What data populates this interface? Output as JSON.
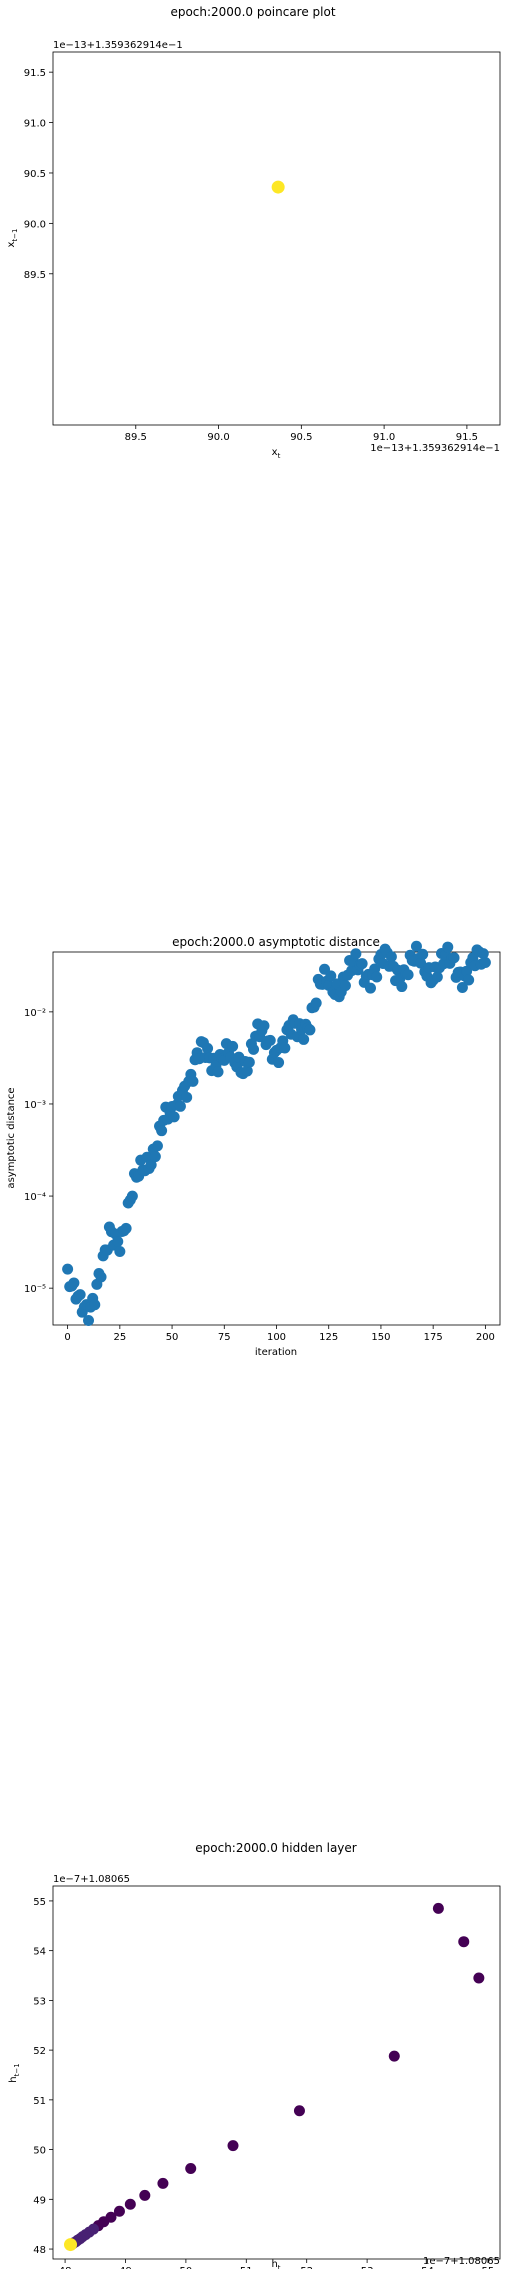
{
  "chart_data": [
    {
      "type": "scatter",
      "title": "epoch:2000.0 poincare plot",
      "xlabel": "x_t",
      "ylabel": "x_{t-1}",
      "x_offset_label": "1e−13+1.359362914e−1",
      "y_offset_label": "1e−13+1.359362914e−1",
      "xlim": [
        89.0,
        91.7
      ],
      "ylim": [
        88.0,
        91.7
      ],
      "xticks": [
        89.5,
        90.0,
        90.5,
        91.0,
        91.5
      ],
      "yticks": [
        89.5,
        90.0,
        90.5,
        91.0,
        91.5
      ],
      "xtick_labels": [
        "89.5",
        "90.0",
        "90.5",
        "91.0",
        "91.5"
      ],
      "ytick_labels": [
        "89.5",
        "90.0",
        "90.5",
        "91.0",
        "91.5"
      ],
      "points": [
        {
          "x": 90.36,
          "y": 90.36
        }
      ],
      "color": "#fde725",
      "grid": false
    },
    {
      "type": "scatter",
      "title": "epoch:2000.0 asymptotic distance",
      "xlabel": "iteration",
      "ylabel": "asymptotic distance",
      "xlim": [
        -7,
        207
      ],
      "ylim_log10": [
        -5.4,
        -1.35
      ],
      "yscale": "log",
      "xticks": [
        0,
        25,
        50,
        75,
        100,
        125,
        150,
        175,
        200
      ],
      "xtick_labels": [
        "0",
        "25",
        "50",
        "75",
        "100",
        "125",
        "150",
        "175",
        "200"
      ],
      "yticks_log10": [
        -5,
        -4,
        -3,
        -2
      ],
      "ytick_labels": [
        "10⁻⁵",
        "10⁻⁴",
        "10⁻³",
        "10⁻²"
      ],
      "color": "#1f77b4",
      "grid": false,
      "anchors_log10": [
        [
          0,
          -4.88
        ],
        [
          3,
          -5.15
        ],
        [
          6,
          -5.22
        ],
        [
          10,
          -5.15
        ],
        [
          14,
          -4.95
        ],
        [
          18,
          -4.75
        ],
        [
          20,
          -4.5
        ],
        [
          25,
          -4.4
        ],
        [
          30,
          -4.05
        ],
        [
          35,
          -3.8
        ],
        [
          40,
          -3.5
        ],
        [
          45,
          -3.25
        ],
        [
          50,
          -3.2
        ],
        [
          55,
          -2.75
        ],
        [
          60,
          -2.7
        ],
        [
          65,
          -2.45
        ],
        [
          70,
          -2.45
        ],
        [
          75,
          -2.5
        ],
        [
          80,
          -2.6
        ],
        [
          85,
          -2.5
        ],
        [
          90,
          -2.3
        ],
        [
          95,
          -2.35
        ],
        [
          100,
          -2.35
        ],
        [
          105,
          -2.3
        ],
        [
          110,
          -2.25
        ],
        [
          115,
          -2.05
        ],
        [
          120,
          -1.8
        ],
        [
          125,
          -1.72
        ],
        [
          130,
          -1.65
        ],
        [
          140,
          -1.55
        ],
        [
          150,
          -1.5
        ],
        [
          160,
          -1.52
        ],
        [
          170,
          -1.5
        ],
        [
          180,
          -1.5
        ],
        [
          190,
          -1.52
        ],
        [
          200,
          -1.5
        ]
      ]
    },
    {
      "type": "scatter",
      "title": "epoch:2000.0 hidden layer",
      "xlabel": "h_t",
      "ylabel": "h_{t-1}",
      "x_offset_label": "1e−7+1.08065",
      "y_offset_label": "1e−7+1.08065",
      "xlim": [
        47.8,
        55.2
      ],
      "ylim": [
        47.8,
        55.3
      ],
      "xticks": [
        48,
        49,
        50,
        51,
        52,
        53,
        54,
        55
      ],
      "yticks": [
        48,
        49,
        50,
        51,
        52,
        53,
        54,
        55
      ],
      "xtick_labels": [
        "48",
        "49",
        "50",
        "51",
        "52",
        "53",
        "54",
        "55"
      ],
      "ytick_labels": [
        "48",
        "49",
        "50",
        "51",
        "52",
        "53",
        "54",
        "55"
      ],
      "colormap": [
        "#440154",
        "#482173",
        "#fde725"
      ],
      "grid": false,
      "points": [
        {
          "x": 54.18,
          "y": 54.85
        },
        {
          "x": 54.6,
          "y": 54.18
        },
        {
          "x": 54.85,
          "y": 53.45
        },
        {
          "x": 53.45,
          "y": 51.88
        },
        {
          "x": 51.88,
          "y": 50.78
        },
        {
          "x": 50.78,
          "y": 50.08
        },
        {
          "x": 50.08,
          "y": 49.62
        },
        {
          "x": 49.62,
          "y": 49.32
        },
        {
          "x": 49.32,
          "y": 49.08
        },
        {
          "x": 49.08,
          "y": 48.9
        },
        {
          "x": 48.9,
          "y": 48.76
        },
        {
          "x": 48.76,
          "y": 48.64
        },
        {
          "x": 48.64,
          "y": 48.55
        },
        {
          "x": 48.55,
          "y": 48.47
        },
        {
          "x": 48.47,
          "y": 48.4
        },
        {
          "x": 48.4,
          "y": 48.34
        },
        {
          "x": 48.34,
          "y": 48.29
        },
        {
          "x": 48.29,
          "y": 48.25
        },
        {
          "x": 48.25,
          "y": 48.21
        },
        {
          "x": 48.21,
          "y": 48.18
        },
        {
          "x": 48.18,
          "y": 48.15
        },
        {
          "x": 48.15,
          "y": 48.13
        },
        {
          "x": 48.13,
          "y": 48.11
        },
        {
          "x": 48.11,
          "y": 48.1
        },
        {
          "x": 48.09,
          "y": 48.09
        }
      ]
    }
  ]
}
